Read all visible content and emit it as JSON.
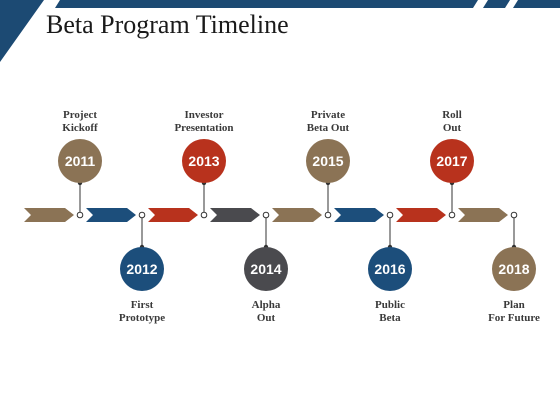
{
  "title": "Beta Program Timeline",
  "colors": {
    "brown": "#8b7355",
    "blue": "#1c4e7b",
    "red": "#b8321d",
    "gray": "#4a4a4e",
    "navy_banner": "#1c4a73"
  },
  "milestones": [
    {
      "year": "2011",
      "label": "Project\nKickoff",
      "position": "above",
      "color": "#8b7355"
    },
    {
      "year": "2012",
      "label": "First\nPrototype",
      "position": "below",
      "color": "#1c4e7b"
    },
    {
      "year": "2013",
      "label": "Investor\nPresentation",
      "position": "above",
      "color": "#b8321d"
    },
    {
      "year": "2014",
      "label": "Alpha\nOut",
      "position": "below",
      "color": "#4a4a4e"
    },
    {
      "year": "2015",
      "label": "Private\nBeta Out",
      "position": "above",
      "color": "#8b7355"
    },
    {
      "year": "2016",
      "label": "Public\nBeta",
      "position": "below",
      "color": "#1c4e7b"
    },
    {
      "year": "2017",
      "label": "Roll\nOut",
      "position": "above",
      "color": "#b8321d"
    },
    {
      "year": "2018",
      "label": "Plan\nFor Future",
      "position": "below",
      "color": "#8b7355"
    }
  ],
  "arrows": [
    "#8b7355",
    "#1c4e7b",
    "#b8321d",
    "#4a4a4e",
    "#8b7355",
    "#1c4e7b",
    "#b8321d",
    "#8b7355"
  ]
}
